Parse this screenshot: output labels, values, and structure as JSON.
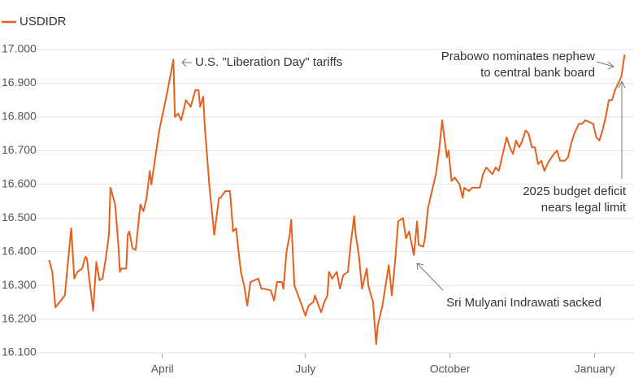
{
  "chart_data": {
    "type": "line",
    "title": "USDIDR",
    "x": [
      0,
      2,
      4,
      10,
      14,
      16,
      18,
      21,
      23,
      24,
      26,
      28,
      30,
      32,
      34,
      36,
      38,
      39,
      42,
      44,
      45,
      46,
      49,
      50,
      51,
      53,
      55,
      58,
      60,
      62,
      64,
      65,
      70,
      75,
      79,
      80,
      82,
      84,
      87,
      90,
      93,
      95,
      96,
      98,
      99,
      102,
      105,
      108,
      109,
      112,
      115,
      117,
      119,
      120,
      122,
      124,
      126,
      128,
      133,
      135,
      137,
      141,
      143,
      145,
      148,
      149,
      151,
      153,
      154,
      156,
      160,
      163,
      165,
      168,
      169,
      173,
      175,
      177,
      178,
      180,
      183,
      185,
      187,
      190,
      192,
      194,
      195,
      197,
      199,
      202,
      203,
      206,
      208,
      209,
      212,
      214,
      216,
      218,
      220,
      222,
      225,
      227,
      229,
      232,
      234,
      235,
      238,
      239,
      241,
      244,
      246,
      248,
      250,
      253,
      254,
      256,
      258,
      261,
      263,
      264,
      267,
      269,
      271,
      274,
      276,
      278,
      280,
      282,
      284,
      286,
      289,
      291,
      293,
      295,
      297,
      299,
      301,
      303,
      305,
      307,
      309,
      311,
      313,
      315,
      318,
      321,
      323,
      325,
      328,
      330,
      332,
      334,
      337,
      339,
      341,
      346,
      348,
      350,
      352,
      354,
      356,
      358,
      360,
      362,
      364,
      366
    ],
    "series": [
      {
        "name": "USDIDR",
        "color": "#e4601f",
        "values": [
          16375,
          16340,
          16235,
          16270,
          16470,
          16320,
          16340,
          16350,
          16385,
          16380,
          16300,
          16225,
          16370,
          16315,
          16320,
          16380,
          16450,
          16590,
          16540,
          16420,
          16340,
          16350,
          16350,
          16450,
          16460,
          16410,
          16405,
          16540,
          16520,
          16560,
          16640,
          16600,
          16760,
          16870,
          16970,
          16800,
          16810,
          16790,
          16850,
          16830,
          16880,
          16880,
          16830,
          16860,
          16770,
          16590,
          16450,
          16560,
          16560,
          16580,
          16580,
          16460,
          16470,
          16420,
          16340,
          16300,
          16240,
          16310,
          16320,
          16290,
          16290,
          16285,
          16255,
          16310,
          16310,
          16290,
          16400,
          16450,
          16495,
          16300,
          16250,
          16210,
          16240,
          16250,
          16270,
          16220,
          16250,
          16270,
          16340,
          16320,
          16340,
          16290,
          16330,
          16340,
          16430,
          16505,
          16450,
          16390,
          16290,
          16350,
          16300,
          16250,
          16125,
          16180,
          16240,
          16300,
          16360,
          16270,
          16370,
          16490,
          16500,
          16440,
          16460,
          16390,
          16490,
          16420,
          16415,
          16440,
          16530,
          16590,
          16630,
          16700,
          16790,
          16680,
          16700,
          16610,
          16620,
          16600,
          16560,
          16590,
          16580,
          16590,
          16590,
          16590,
          16630,
          16650,
          16640,
          16630,
          16650,
          16640,
          16700,
          16740,
          16710,
          16690,
          16730,
          16710,
          16730,
          16760,
          16750,
          16710,
          16710,
          16660,
          16670,
          16640,
          16670,
          16690,
          16700,
          16670,
          16670,
          16680,
          16720,
          16750,
          16780,
          16780,
          16790,
          16780,
          16740,
          16730,
          16760,
          16800,
          16850,
          16850,
          16880,
          16900,
          16920,
          16985
        ]
      }
    ],
    "xlim": [
      -8,
      372
    ],
    "xticks": [
      {
        "value": 72,
        "label": "April"
      },
      {
        "value": 163,
        "label": "July"
      },
      {
        "value": 255,
        "label": "October"
      },
      {
        "value": 347,
        "label": "January"
      }
    ],
    "ylim": [
      16100,
      17000
    ],
    "yticks": [
      {
        "value": 16100,
        "label": "16.100"
      },
      {
        "value": 16200,
        "label": "16.200"
      },
      {
        "value": 16300,
        "label": "16.300"
      },
      {
        "value": 16400,
        "label": "16.400"
      },
      {
        "value": 16500,
        "label": "16.500"
      },
      {
        "value": 16600,
        "label": "16.600"
      },
      {
        "value": 16700,
        "label": "16.700"
      },
      {
        "value": 16800,
        "label": "16.800"
      },
      {
        "value": 16900,
        "label": "16.900"
      },
      {
        "value": 17000,
        "label": "17.000"
      }
    ],
    "grid": true,
    "annotations": [
      {
        "lines": [
          "U.S. \"Liberation Day\" tariffs"
        ]
      },
      {
        "lines": [
          "Prabowo nominates nephew",
          "to central bank board"
        ]
      },
      {
        "lines": [
          "2025 budget deficit",
          "nears legal limit"
        ]
      },
      {
        "lines": [
          "Sri Mulyani Indrawati sacked"
        ]
      }
    ]
  }
}
